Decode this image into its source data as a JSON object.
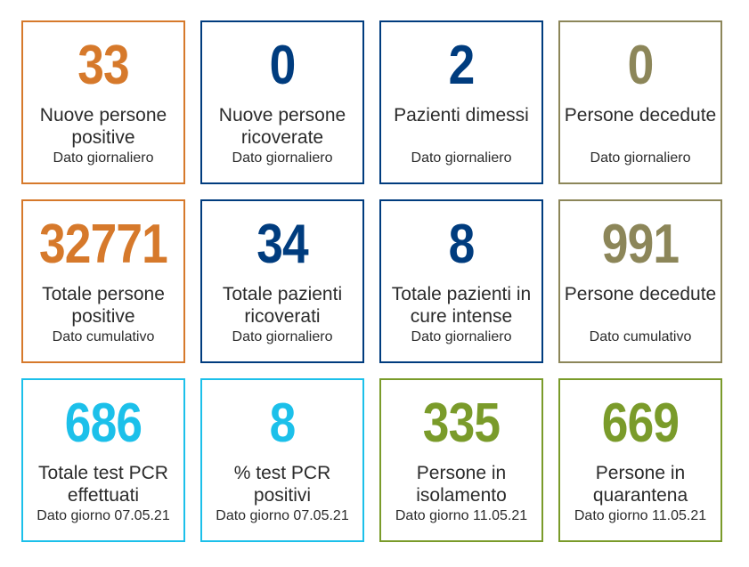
{
  "tiles": [
    {
      "value": "33",
      "label": "Nuove persone positive",
      "sub": "Dato giornaliero",
      "color": "#d6792b"
    },
    {
      "value": "0",
      "label": "Nuove persone ricoverate",
      "sub": "Dato giornaliero",
      "color": "#003c7e"
    },
    {
      "value": "2",
      "label": "Pazienti dimessi",
      "sub": "Dato giornaliero",
      "color": "#003c7e"
    },
    {
      "value": "0",
      "label": "Persone decedute",
      "sub": "Dato giornaliero",
      "color": "#8c8659"
    },
    {
      "value": "32771",
      "label": "Totale persone positive",
      "sub": "Dato cumulativo",
      "color": "#d6792b"
    },
    {
      "value": "34",
      "label": "Totale pazienti ricoverati",
      "sub": "Dato giornaliero",
      "color": "#003c7e"
    },
    {
      "value": "8",
      "label": "Totale pazienti in cure intense",
      "sub": "Dato giornaliero",
      "color": "#003c7e"
    },
    {
      "value": "991",
      "label": "Persone decedute",
      "sub": "Dato cumulativo",
      "color": "#8c8659"
    },
    {
      "value": "686",
      "label": "Totale test PCR effettuati",
      "sub": "Dato giorno 07.05.21",
      "color": "#1cc0ea"
    },
    {
      "value": "8",
      "label": "% test PCR positivi",
      "sub": "Dato giorno 07.05.21",
      "color": "#1cc0ea"
    },
    {
      "value": "335",
      "label": "Persone in isolamento",
      "sub": "Dato giorno 11.05.21",
      "color": "#7a9b2a"
    },
    {
      "value": "669",
      "label": "Persone in quarantena",
      "sub": "Dato giorno 11.05.21",
      "color": "#7a9b2a"
    }
  ]
}
